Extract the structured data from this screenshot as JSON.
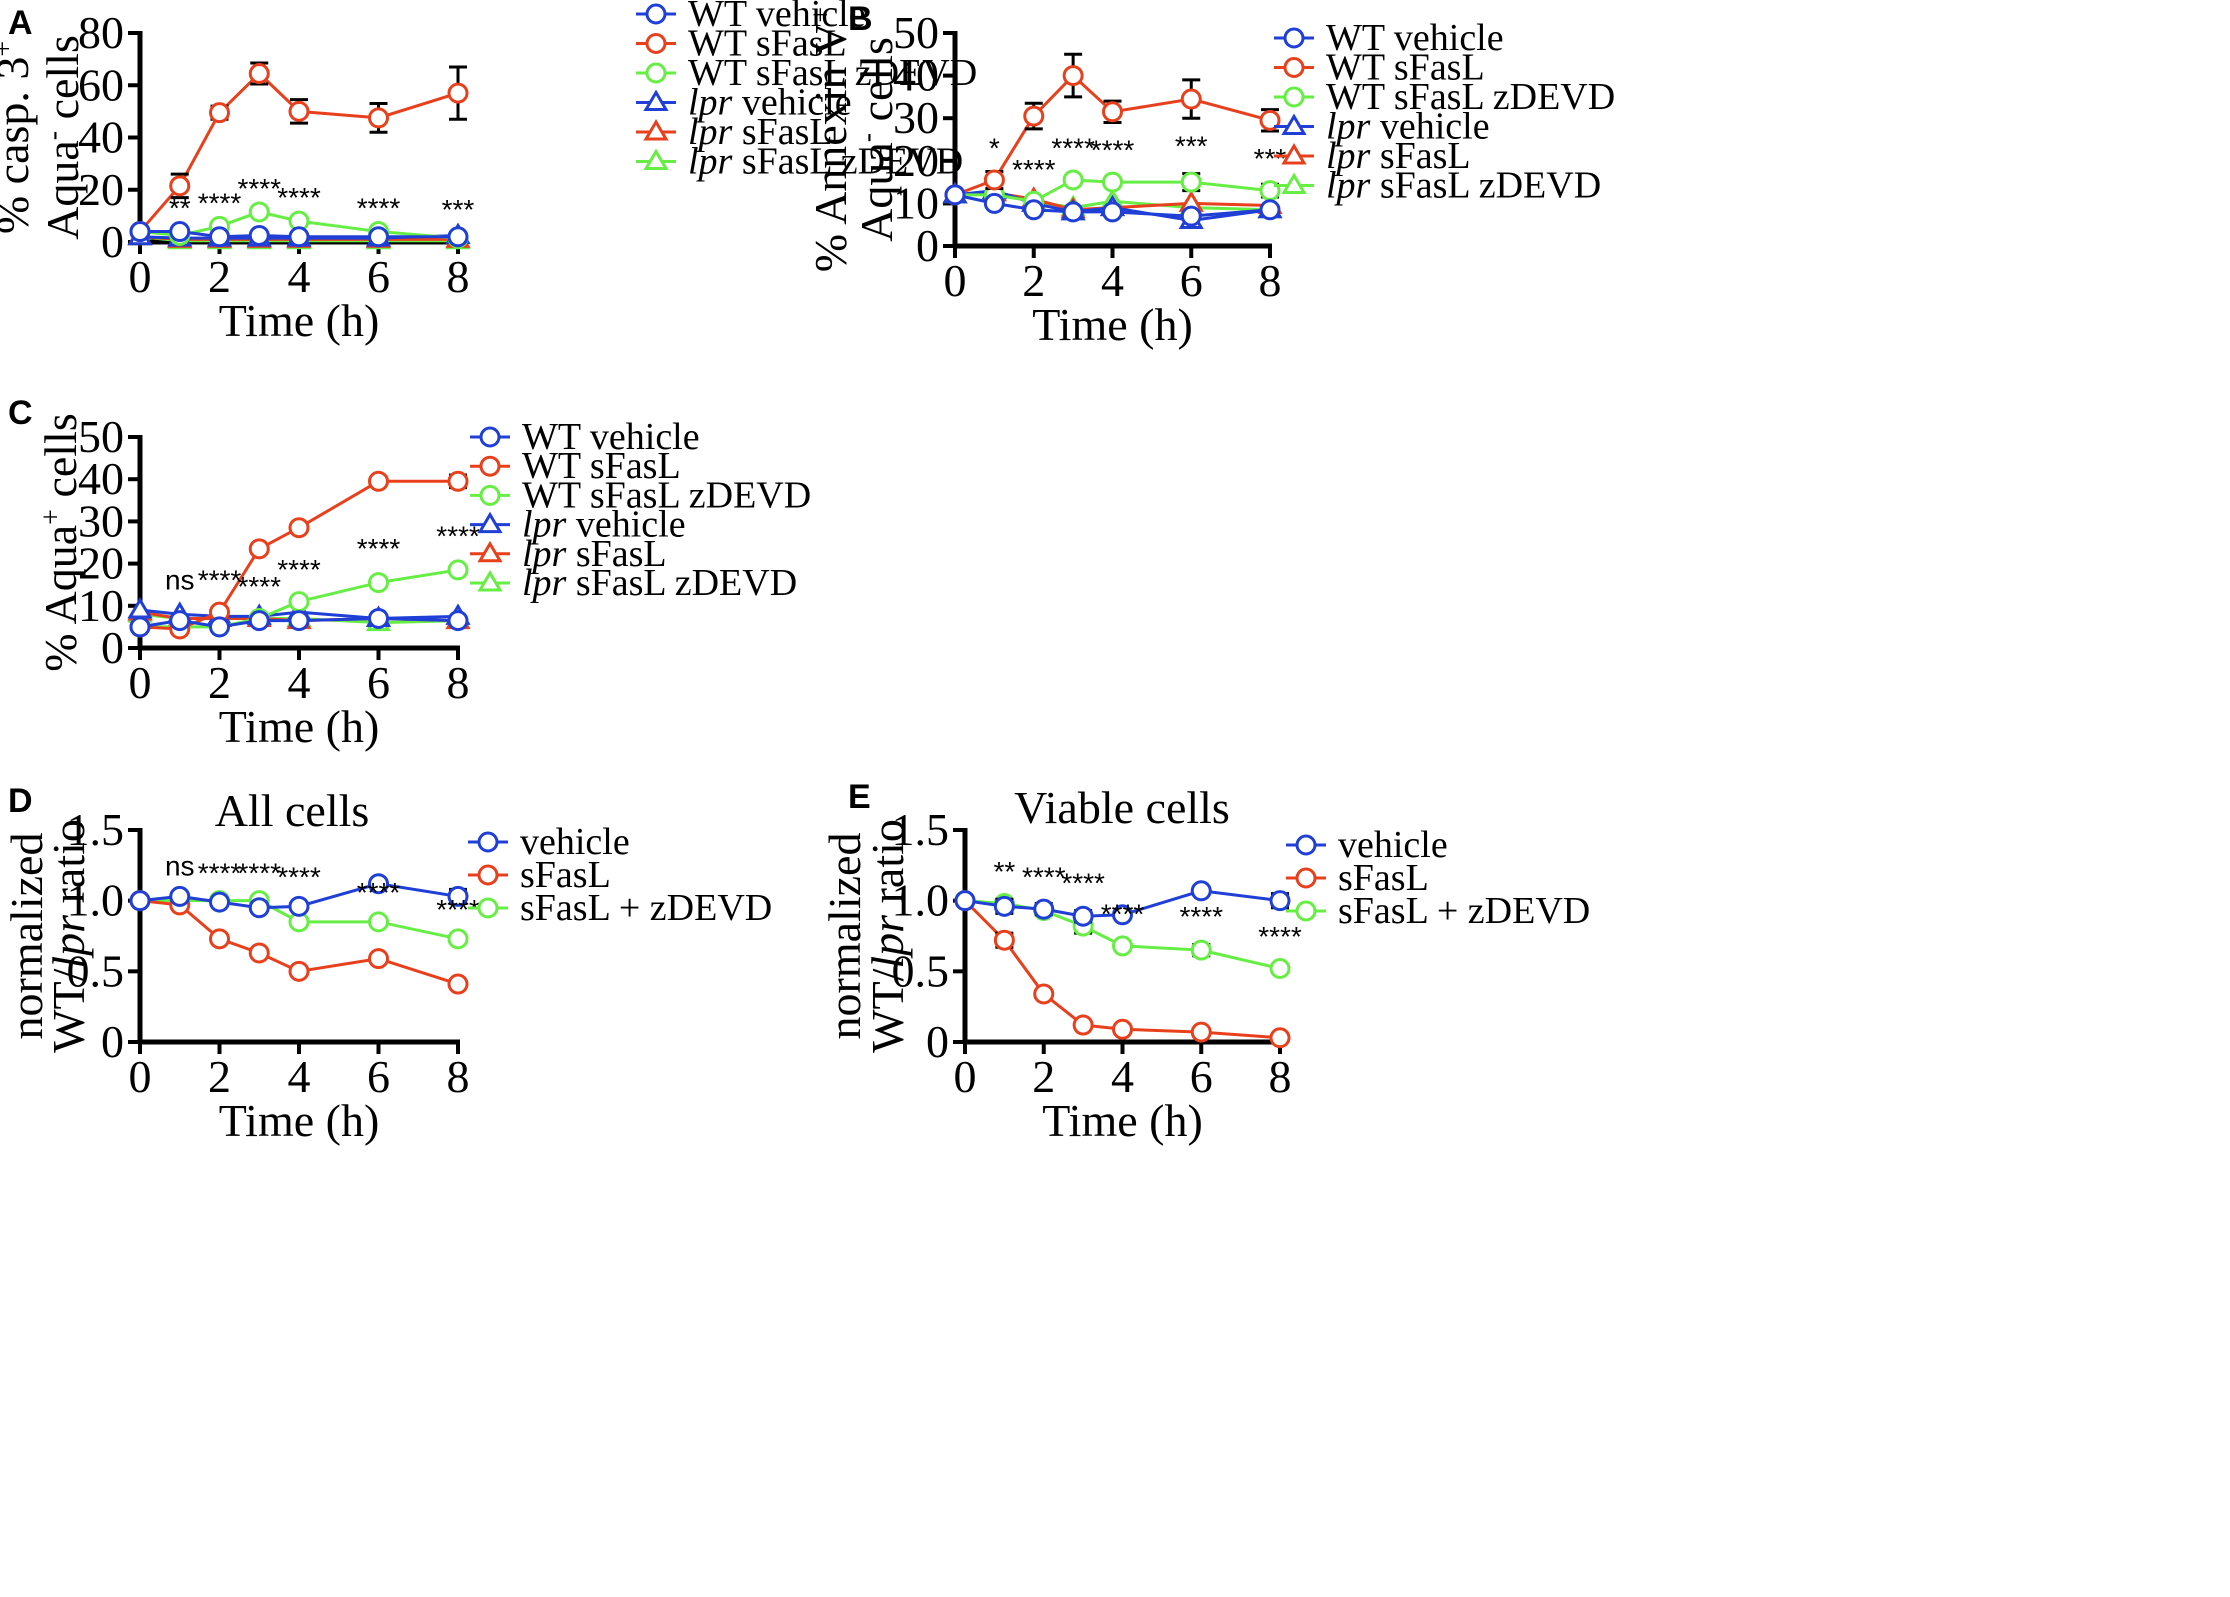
{
  "figure": {
    "colors": {
      "blue": "#1f3fd6",
      "red": "#e8401c",
      "green": "#66ee44",
      "black": "#000000"
    }
  },
  "chart_data": [
    {
      "panel": "A",
      "type": "line",
      "title": "",
      "xlabel": "Time (h)",
      "ylabel_line1": "% casp. 3",
      "ylabel_line1_sup": "+",
      "ylabel_line2": "Aqua",
      "ylabel_line2_sup": "-",
      "ylabel_line2_rest": " cells",
      "xlim": [
        0,
        8
      ],
      "ylim": [
        0,
        80
      ],
      "xticks": [
        0,
        2,
        4,
        6,
        8
      ],
      "yticks": [
        0,
        20,
        40,
        60,
        80
      ],
      "x": [
        0,
        1,
        2,
        3,
        4,
        6,
        8
      ],
      "series": [
        {
          "name": "WT vehicle",
          "italic_prefix": "",
          "label_text": "WT vehicle",
          "color": "blue",
          "marker": "circle",
          "values": [
            4,
            4,
            2,
            2.5,
            2,
            2,
            2
          ],
          "errors": [
            0,
            0,
            0,
            0,
            0,
            0,
            0
          ]
        },
        {
          "name": "WT sFasL",
          "italic_prefix": "",
          "label_text": "WT sFasL",
          "color": "red",
          "marker": "circle",
          "values": [
            4,
            21.5,
            49.5,
            64.5,
            50,
            47.5,
            57
          ],
          "errors": [
            0,
            4.5,
            2.5,
            4,
            4.5,
            5.5,
            10
          ]
        },
        {
          "name": "WT sFasL zDEVD",
          "italic_prefix": "",
          "label_text": "WT sFasL zDEVD",
          "color": "green",
          "marker": "circle",
          "values": [
            4,
            2.5,
            6,
            11.5,
            8,
            4,
            1.5
          ],
          "errors": [
            0,
            0,
            0,
            0,
            0,
            0,
            0
          ]
        },
        {
          "name": "lpr vehicle",
          "italic_prefix": "lpr",
          "label_text": " vehicle",
          "color": "blue",
          "marker": "triangle",
          "values": [
            2,
            1.5,
            1.5,
            1.5,
            1.5,
            1.5,
            2.5
          ],
          "errors": [
            0,
            0,
            0,
            0,
            0,
            0,
            0
          ]
        },
        {
          "name": "lpr sFasL",
          "italic_prefix": "lpr",
          "label_text": " sFasL",
          "color": "red",
          "marker": "triangle",
          "values": [
            2,
            1,
            1,
            1,
            1,
            1,
            1
          ],
          "errors": [
            0,
            0,
            0,
            0,
            0,
            0,
            0
          ]
        },
        {
          "name": "lpr sFasL zDEVD",
          "italic_prefix": "lpr",
          "label_text": " sFasL zDEVD",
          "color": "green",
          "marker": "triangle",
          "values": [
            2,
            0.5,
            0.5,
            0.5,
            0.5,
            0.5,
            0.5
          ],
          "errors": [
            0,
            0,
            0,
            0,
            0,
            0,
            0
          ]
        }
      ],
      "annotations": [
        {
          "x": 1,
          "y": 4,
          "text": "**"
        },
        {
          "x": 2,
          "y": 6,
          "text": "****"
        },
        {
          "x": 3,
          "y": 11.5,
          "text": "****"
        },
        {
          "x": 4,
          "y": 8,
          "text": "****"
        },
        {
          "x": 6,
          "y": 4,
          "text": "****"
        },
        {
          "x": 8,
          "y": 3.5,
          "text": "***"
        }
      ]
    },
    {
      "panel": "B",
      "type": "line",
      "title": "",
      "xlabel": "Time (h)",
      "ylabel_line1": "% Annexin V",
      "ylabel_line1_sup": "+",
      "ylabel_line2": "Aqua",
      "ylabel_line2_sup": "-",
      "ylabel_line2_rest": " cells",
      "xlim": [
        0,
        8
      ],
      "ylim": [
        0,
        50
      ],
      "xticks": [
        0,
        2,
        4,
        6,
        8
      ],
      "yticks": [
        0,
        10,
        20,
        30,
        40,
        50
      ],
      "x": [
        0,
        1,
        2,
        3,
        4,
        6,
        8
      ],
      "series": [
        {
          "name": "WT vehicle",
          "italic_prefix": "",
          "label_text": "WT vehicle",
          "color": "blue",
          "marker": "circle",
          "values": [
            12,
            10,
            8.5,
            8,
            8,
            7,
            8.5
          ],
          "errors": [
            0,
            0,
            0,
            0,
            0,
            0,
            0
          ]
        },
        {
          "name": "WT sFasL",
          "italic_prefix": "",
          "label_text": "WT sFasL",
          "color": "red",
          "marker": "circle",
          "values": [
            12,
            15.5,
            30.5,
            40,
            31.5,
            34.5,
            29.5
          ],
          "errors": [
            0,
            2,
            3,
            5,
            2.5,
            4.5,
            2.5
          ]
        },
        {
          "name": "WT sFasL zDEVD",
          "italic_prefix": "",
          "label_text": "WT sFasL zDEVD",
          "color": "green",
          "marker": "circle",
          "values": [
            12,
            12,
            10.5,
            15.5,
            15,
            15,
            13
          ],
          "errors": [
            0,
            0,
            0,
            0,
            0,
            2,
            1.5
          ]
        },
        {
          "name": "lpr vehicle",
          "italic_prefix": "lpr",
          "label_text": " vehicle",
          "color": "blue",
          "marker": "triangle",
          "values": [
            12,
            13,
            10,
            8,
            9,
            6,
            8.5
          ],
          "errors": [
            0,
            0,
            0,
            0,
            0,
            0,
            0
          ]
        },
        {
          "name": "lpr sFasL",
          "italic_prefix": "lpr",
          "label_text": " sFasL",
          "color": "red",
          "marker": "triangle",
          "values": [
            12,
            12.5,
            11,
            8.5,
            9,
            10,
            9.5
          ],
          "errors": [
            0,
            0,
            0,
            0,
            0,
            0,
            0
          ]
        },
        {
          "name": "lpr sFasL zDEVD",
          "italic_prefix": "lpr",
          "label_text": " sFasL zDEVD",
          "color": "green",
          "marker": "triangle",
          "values": [
            12,
            12.5,
            10.5,
            9,
            10.5,
            9,
            8.5
          ],
          "errors": [
            0,
            0,
            0,
            0,
            0,
            0,
            0
          ]
        }
      ],
      "annotations": [
        {
          "x": 1,
          "y": 17.5,
          "text": "*"
        },
        {
          "x": 2,
          "y": 12.5,
          "text": "****"
        },
        {
          "x": 3,
          "y": 17.5,
          "text": "****"
        },
        {
          "x": 4,
          "y": 17,
          "text": "****"
        },
        {
          "x": 6,
          "y": 18,
          "text": "***"
        },
        {
          "x": 8,
          "y": 15,
          "text": "***"
        }
      ]
    },
    {
      "panel": "C",
      "type": "line",
      "title": "",
      "xlabel": "Time (h)",
      "ylabel_line1": "% Aqua",
      "ylabel_line1_sup": "+",
      "ylabel_line1_rest": " cells",
      "xlim": [
        0,
        8
      ],
      "ylim": [
        0,
        50
      ],
      "xticks": [
        0,
        2,
        4,
        6,
        8
      ],
      "yticks": [
        0,
        10,
        20,
        30,
        40,
        50
      ],
      "x": [
        0,
        1,
        2,
        3,
        4,
        6,
        8
      ],
      "series": [
        {
          "name": "WT vehicle",
          "italic_prefix": "",
          "label_text": "WT vehicle",
          "color": "blue",
          "marker": "circle",
          "values": [
            5,
            6.5,
            5,
            6.5,
            6.5,
            7,
            6.5
          ],
          "errors": [
            0,
            0,
            0,
            0,
            0,
            0,
            0
          ]
        },
        {
          "name": "WT sFasL",
          "italic_prefix": "",
          "label_text": "WT sFasL",
          "color": "red",
          "marker": "circle",
          "values": [
            5,
            4.5,
            8.5,
            23.5,
            28.5,
            39.5,
            39.5
          ],
          "errors": [
            0,
            0,
            0,
            0,
            0,
            0,
            1.5
          ]
        },
        {
          "name": "WT sFasL zDEVD",
          "italic_prefix": "",
          "label_text": "WT sFasL zDEVD",
          "color": "green",
          "marker": "circle",
          "values": [
            5,
            5,
            5,
            7,
            11,
            15.5,
            18.5
          ],
          "errors": [
            0,
            0,
            0,
            0,
            0,
            0,
            0
          ]
        },
        {
          "name": "lpr vehicle",
          "italic_prefix": "lpr",
          "label_text": " vehicle",
          "color": "blue",
          "marker": "triangle",
          "values": [
            9,
            8,
            7.5,
            7.5,
            8.5,
            7,
            7.5
          ],
          "errors": [
            0,
            0,
            0,
            0,
            0,
            0,
            0
          ]
        },
        {
          "name": "lpr sFasL",
          "italic_prefix": "lpr",
          "label_text": " sFasL",
          "color": "red",
          "marker": "triangle",
          "values": [
            8.5,
            7,
            7,
            7,
            6.5,
            7,
            6.5
          ],
          "errors": [
            0,
            0,
            0,
            0,
            0,
            0,
            0
          ]
        },
        {
          "name": "lpr sFasL zDEVD",
          "italic_prefix": "lpr",
          "label_text": " sFasL zDEVD",
          "color": "green",
          "marker": "triangle",
          "values": [
            8,
            7,
            7,
            7,
            7,
            6,
            6.5
          ],
          "errors": [
            0,
            0,
            0,
            0,
            0,
            0,
            0
          ]
        }
      ],
      "annotations": [
        {
          "x": 1,
          "y": 10.5,
          "text": "ns"
        },
        {
          "x": 2,
          "y": 10.5,
          "text": "****"
        },
        {
          "x": 3,
          "y": 9,
          "text": "****"
        },
        {
          "x": 4,
          "y": 13,
          "text": "****"
        },
        {
          "x": 6,
          "y": 18,
          "text": "****"
        },
        {
          "x": 8,
          "y": 21,
          "text": "****"
        }
      ]
    },
    {
      "panel": "D",
      "type": "line",
      "title": "All cells",
      "xlabel": "Time (h)",
      "ylabel_line1": "normalized",
      "ylabel_line2_pre": "WT/",
      "ylabel_line2_ital": "lpr",
      "ylabel_line2_rest": " ratio",
      "xlim": [
        0,
        8
      ],
      "ylim": [
        0,
        1.5
      ],
      "xticks": [
        0,
        2,
        4,
        6,
        8
      ],
      "yticks": [
        0,
        0.5,
        1.0,
        1.5
      ],
      "ytick_labels": [
        "0",
        "0.5",
        "1.0",
        "1.5"
      ],
      "x": [
        0,
        1,
        2,
        3,
        4,
        6,
        8
      ],
      "series": [
        {
          "name": "vehicle",
          "italic_prefix": "",
          "label_text": "vehicle",
          "color": "blue",
          "marker": "circle",
          "values": [
            1.0,
            1.03,
            0.99,
            0.95,
            0.96,
            1.12,
            1.03
          ],
          "errors": [
            0,
            0,
            0,
            0,
            0,
            0,
            0.05
          ]
        },
        {
          "name": "sFasL",
          "italic_prefix": "",
          "label_text": "sFasL",
          "color": "red",
          "marker": "circle",
          "values": [
            1.0,
            0.97,
            0.73,
            0.63,
            0.5,
            0.59,
            0.41
          ],
          "errors": [
            0,
            0,
            0,
            0,
            0,
            0,
            0
          ]
        },
        {
          "name": "sFasL + zDEVD",
          "italic_prefix": "",
          "label_text": "sFasL + zDEVD",
          "color": "green",
          "marker": "circle",
          "values": [
            1.0,
            1.0,
            1.0,
            1.0,
            0.85,
            0.85,
            0.73
          ],
          "errors": [
            0,
            0,
            0,
            0,
            0,
            0,
            0
          ]
        }
      ],
      "annotations": [
        {
          "x": 1,
          "y": 1.08,
          "text": "ns"
        },
        {
          "x": 2,
          "y": 1.03,
          "text": "****"
        },
        {
          "x": 3,
          "y": 1.03,
          "text": "****"
        },
        {
          "x": 4,
          "y": 1.0,
          "text": "****"
        },
        {
          "x": 6,
          "y": 0.89,
          "text": "****"
        },
        {
          "x": 8,
          "y": 0.77,
          "text": "****"
        }
      ]
    },
    {
      "panel": "E",
      "type": "line",
      "title": "Viable cells",
      "xlabel": "Time (h)",
      "ylabel_line1": "normalized",
      "ylabel_line2_pre": "WT/",
      "ylabel_line2_ital": "lpr",
      "ylabel_line2_rest": " ratio",
      "xlim": [
        0,
        8
      ],
      "ylim": [
        0,
        1.5
      ],
      "xticks": [
        0,
        2,
        4,
        6,
        8
      ],
      "yticks": [
        0,
        0.5,
        1.0,
        1.5
      ],
      "ytick_labels": [
        "0",
        "0.5",
        "1.0",
        "1.5"
      ],
      "x": [
        0,
        1,
        2,
        3,
        4,
        6,
        8
      ],
      "series": [
        {
          "name": "vehicle",
          "italic_prefix": "",
          "label_text": "vehicle",
          "color": "blue",
          "marker": "circle",
          "values": [
            1.0,
            0.96,
            0.94,
            0.89,
            0.9,
            1.07,
            1.0
          ],
          "errors": [
            0,
            0.05,
            0.04,
            0.04,
            0,
            0,
            0.05
          ]
        },
        {
          "name": "sFasL",
          "italic_prefix": "",
          "label_text": "sFasL",
          "color": "red",
          "marker": "circle",
          "values": [
            1.0,
            0.72,
            0.34,
            0.12,
            0.09,
            0.07,
            0.03
          ],
          "errors": [
            0,
            0.05,
            0,
            0,
            0,
            0,
            0
          ]
        },
        {
          "name": "sFasL + zDEVD",
          "italic_prefix": "",
          "label_text": "sFasL + zDEVD",
          "color": "green",
          "marker": "circle",
          "values": [
            1.0,
            0.98,
            0.93,
            0.82,
            0.68,
            0.65,
            0.52
          ],
          "errors": [
            0,
            0,
            0,
            0.05,
            0,
            0.04,
            0
          ]
        }
      ],
      "annotations": [
        {
          "x": 1,
          "y": 1.04,
          "text": "**"
        },
        {
          "x": 2,
          "y": 1.0,
          "text": "****"
        },
        {
          "x": 3,
          "y": 0.96,
          "text": "****"
        },
        {
          "x": 4,
          "y": 0.74,
          "text": "****"
        },
        {
          "x": 6,
          "y": 0.72,
          "text": "****"
        },
        {
          "x": 8,
          "y": 0.58,
          "text": "****"
        }
      ]
    }
  ]
}
